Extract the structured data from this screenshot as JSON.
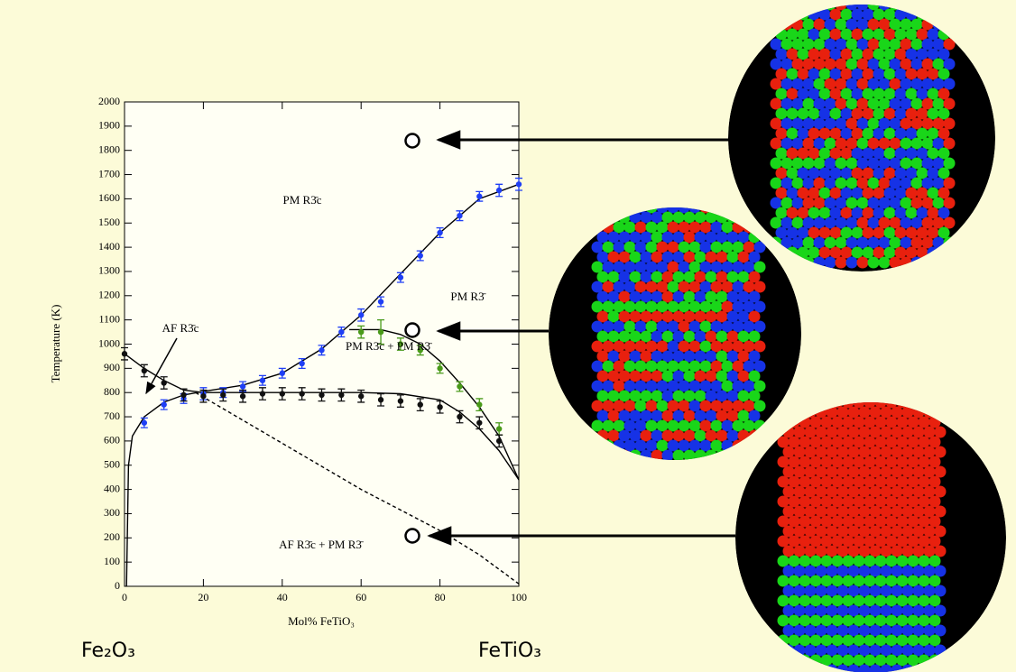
{
  "chart_data": {
    "type": "scatter",
    "xlabel": "Mol% FeTiO₃",
    "ylabel": "Temperature (K)",
    "xlim": [
      0,
      100
    ],
    "xticks": [
      0,
      20,
      40,
      60,
      80,
      100
    ],
    "ylim": [
      0,
      2000
    ],
    "yticks": [
      0,
      100,
      200,
      300,
      400,
      500,
      600,
      700,
      800,
      900,
      1000,
      1100,
      1200,
      1300,
      1400,
      1500,
      1600,
      1700,
      1800,
      1900,
      2000
    ],
    "series": [
      {
        "color": "#1f3ff5",
        "x": [
          5,
          10,
          15,
          20,
          25,
          30,
          35,
          40,
          45,
          50,
          55,
          60,
          65,
          70,
          75,
          80,
          85,
          90,
          95,
          100
        ],
        "values": [
          675,
          750,
          775,
          795,
          800,
          825,
          850,
          880,
          920,
          975,
          1050,
          1120,
          1175,
          1275,
          1365,
          1460,
          1530,
          1610,
          1635,
          1660
        ],
        "errors": [
          20,
          20,
          20,
          25,
          20,
          20,
          20,
          20,
          20,
          20,
          20,
          25,
          20,
          20,
          20,
          20,
          20,
          20,
          25,
          25
        ]
      },
      {
        "color": "#4a9a1a",
        "x": [
          60,
          65,
          70,
          75,
          80,
          85,
          90,
          95
        ],
        "values": [
          1050,
          1050,
          1000,
          975,
          900,
          825,
          750,
          650
        ],
        "errors": [
          25,
          50,
          25,
          20,
          20,
          20,
          25,
          25
        ]
      },
      {
        "color": "#111111",
        "x": [
          0,
          5,
          10,
          15,
          20,
          25,
          30,
          35,
          40,
          45,
          50,
          55,
          60,
          65,
          70,
          75,
          80,
          85,
          90,
          95
        ],
        "values": [
          960,
          890,
          840,
          790,
          785,
          790,
          785,
          795,
          795,
          795,
          790,
          790,
          785,
          770,
          765,
          750,
          740,
          700,
          675,
          600
        ],
        "errors": [
          25,
          25,
          25,
          25,
          25,
          25,
          25,
          25,
          25,
          25,
          25,
          25,
          25,
          25,
          25,
          25,
          25,
          25,
          25,
          25
        ]
      }
    ],
    "curves": [
      {
        "dashed": false,
        "x": [
          0.5,
          1,
          2,
          5,
          10,
          15,
          20,
          30,
          40,
          50,
          60,
          70,
          80,
          90,
          100
        ],
        "values": [
          0,
          500,
          620,
          700,
          760,
          790,
          805,
          830,
          880,
          980,
          1120,
          1290,
          1460,
          1600,
          1660
        ]
      },
      {
        "dashed": false,
        "x": [
          0,
          5,
          10,
          15,
          20,
          30,
          40,
          50,
          60,
          70,
          80,
          85,
          90,
          95,
          100
        ],
        "values": [
          960,
          900,
          850,
          810,
          800,
          800,
          800,
          800,
          800,
          795,
          770,
          720,
          650,
          560,
          440
        ]
      },
      {
        "dashed": false,
        "x": [
          57,
          65,
          70,
          75,
          80,
          85,
          90,
          95,
          100
        ],
        "values": [
          1060,
          1060,
          1040,
          1000,
          930,
          840,
          740,
          620,
          440
        ]
      },
      {
        "dashed": true,
        "x": [
          18,
          60,
          80,
          90,
          100
        ],
        "values": [
          800,
          400,
          230,
          130,
          10
        ]
      }
    ],
    "annotations": [
      "PM R3̄c",
      "PM R3̄",
      "AF R3̄c",
      "PM R3̄c + PM R3̄",
      "AF R3̄c + PM R3̄"
    ],
    "left_label": "Fe₂O₃",
    "right_label": "FeTiO₃"
  }
}
